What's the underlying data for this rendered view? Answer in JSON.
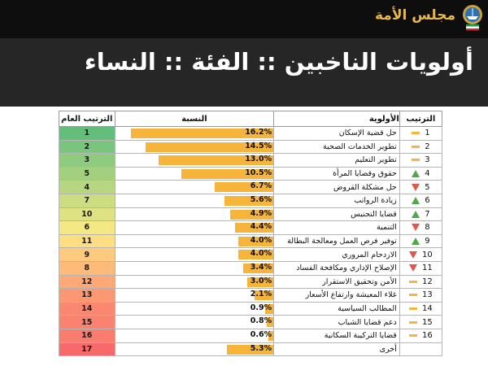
{
  "org_name": "مجلس الأمة",
  "logo_icon": "kuwait-emblem-icon",
  "title": "أولويات الناخبين :: الفئة :: النساء",
  "colors": {
    "bar": "#f6b43a",
    "up": "#4fa84a",
    "down": "#e0574a",
    "same": "#f4b73b"
  },
  "headers": {
    "overall": "الترتيب العام",
    "pct": "النسبة",
    "priority": "الأولوية",
    "rank": "الترتيب"
  },
  "chart_data": {
    "type": "bar",
    "orientation": "horizontal",
    "xlim": [
      0,
      17
    ],
    "categories": [
      "حل قضية الإسكان",
      "تطوير الخدمات الصحية",
      "تطوير التعليم",
      "حقوق وقضايا المرأة",
      "حل مشكلة القروض",
      "زيادة الرواتب",
      "قضايا التجنيس",
      "التنمية",
      "توفير فرص العمل ومعالجة البطالة",
      "الازدحام المروري",
      "الإصلاح الإداري ومكافحة الفساد",
      "الأمن وتحقيق الاستقرار",
      "غلاء المعيشة وارتفاع الأسعار",
      "المطالب السياسية",
      "دعم قضايا الشباب",
      "قضايا التركيبة السكانية",
      "أخرى"
    ],
    "values": [
      16.2,
      14.5,
      13.0,
      10.5,
      6.7,
      5.6,
      4.9,
      4.4,
      4.0,
      4.0,
      3.4,
      3.0,
      2.1,
      0.9,
      0.8,
      0.6,
      5.3
    ],
    "labels": [
      "16.2%",
      "14.5%",
      "13.0%",
      "10.5%",
      "6.7%",
      "5.6%",
      "4.9%",
      "4.4%",
      "4.0%",
      "4.0%",
      "3.4%",
      "3.0%",
      "2.1%",
      "0.9%",
      "0.8%",
      "0.6%",
      "5.3%"
    ],
    "rank": [
      "1",
      "2",
      "3",
      "4",
      "5",
      "6",
      "7",
      "8",
      "9",
      "10",
      "11",
      "12",
      "13",
      "14",
      "15",
      "16",
      ""
    ],
    "trend": [
      "same",
      "same",
      "same",
      "up",
      "down",
      "up",
      "up",
      "down",
      "up",
      "down",
      "down",
      "same",
      "same",
      "same",
      "same",
      "same",
      "none"
    ],
    "overall_rank": [
      "1",
      "2",
      "3",
      "5",
      "4",
      "7",
      "10",
      "6",
      "11",
      "9",
      "8",
      "12",
      "13",
      "14",
      "15",
      "16",
      "17"
    ],
    "overall_colors": [
      "#63be7b",
      "#79c57d",
      "#8ecb7e",
      "#a2d07f",
      "#b7d680",
      "#cbdc81",
      "#dfe282",
      "#f4e884",
      "#ffdd82",
      "#fecb7e",
      "#fdba7a",
      "#fca977",
      "#fb9874",
      "#fa8870",
      "#f98370",
      "#f97c6e",
      "#f8696b"
    ]
  }
}
